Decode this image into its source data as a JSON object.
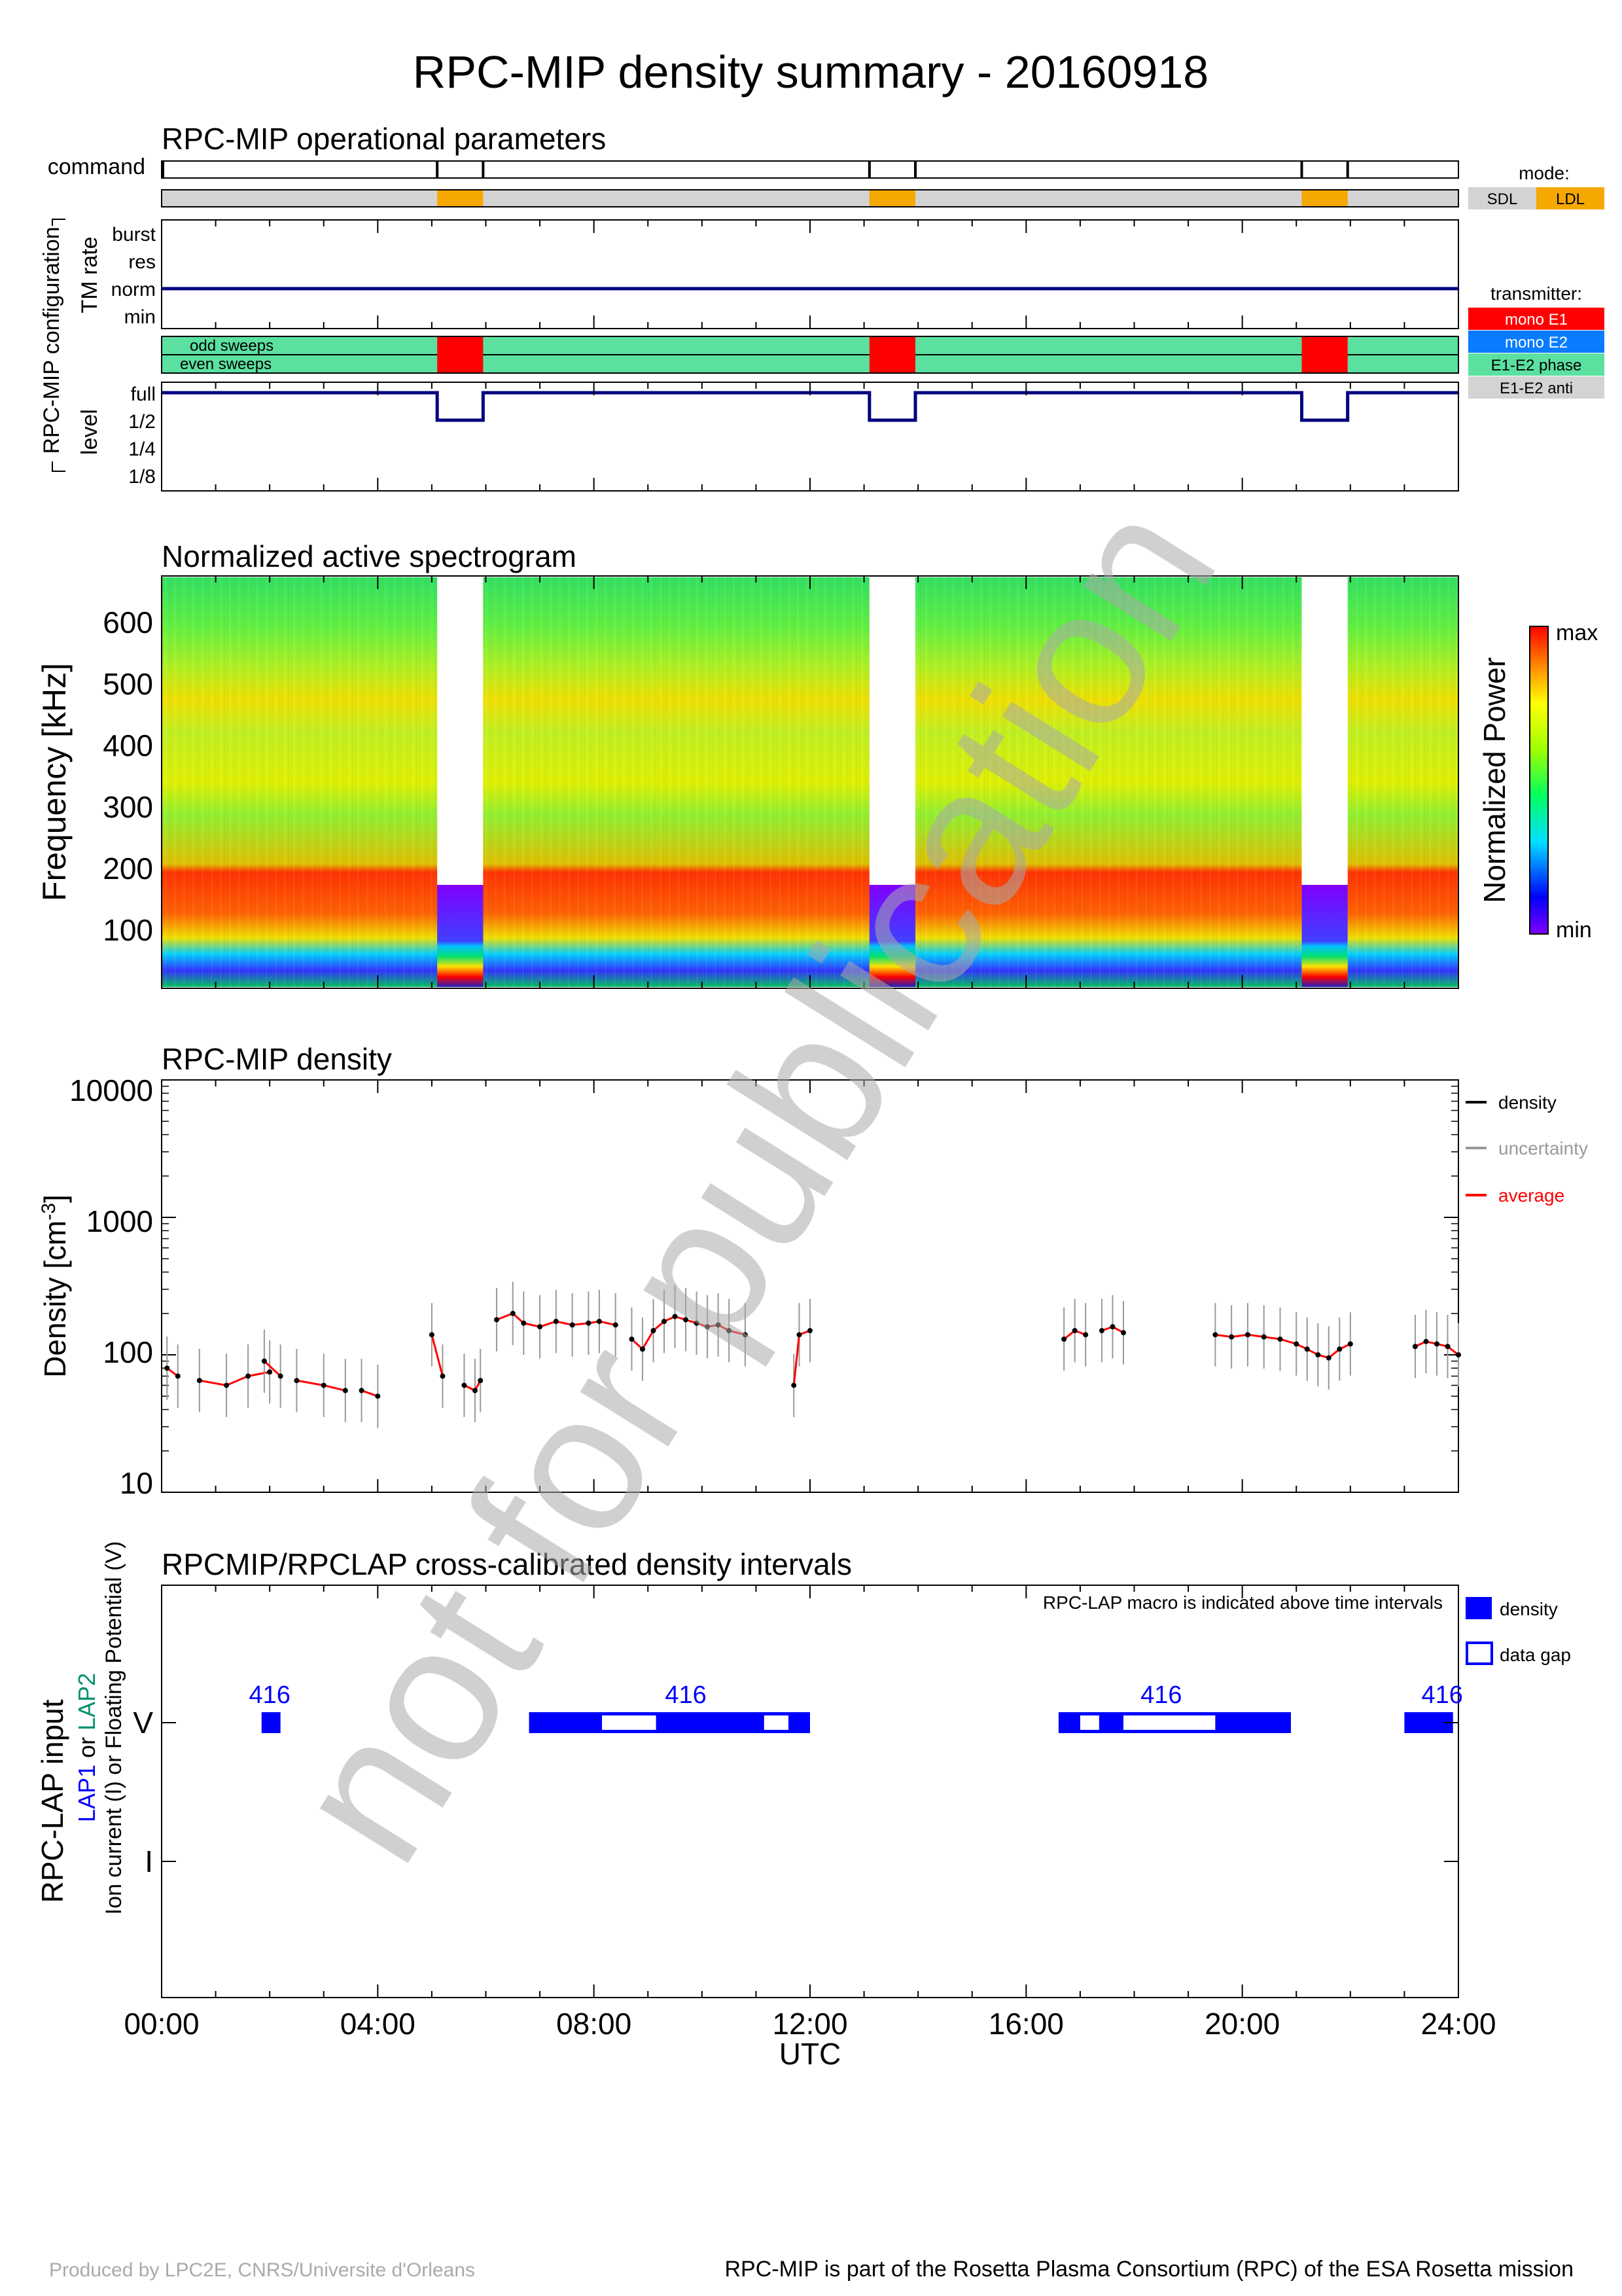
{
  "title": "RPC-MIP density summary - 20160918",
  "watermark": "not for publication",
  "footer": {
    "left": "Produced by LPC2E, CNRS/Universite d'Orleans",
    "right": "RPC-MIP is part of the Rosetta Plasma Consortium (RPC) of the ESA Rosetta mission"
  },
  "colors": {
    "ldl": "#f5a800",
    "sdl": "#d3d3d3",
    "mono_e1": "#ff0000",
    "mono_e2": "#0a7cff",
    "phase": "#5ce0a0",
    "anti": "#d3d3d3",
    "navy": "#000080",
    "lap_blue": "#0000ff",
    "lap2_green": "#009070"
  },
  "ops": {
    "title": "RPC-MIP operational parameters",
    "command_label": "command",
    "config_label": "RPC-MIP configuration",
    "tm_rate_label": "TM rate",
    "tm_levels": [
      "burst",
      "res",
      "norm",
      "min"
    ],
    "odd_label": "odd sweeps",
    "even_label": "even sweeps",
    "level_label": "level",
    "levels": [
      "full",
      "1/2",
      "1/4",
      "1/8"
    ],
    "command_times_h": [
      5.1,
      5.95,
      13.1,
      13.95,
      21.1,
      21.95
    ],
    "ldl_intervals_h": [
      [
        5.1,
        5.95
      ],
      [
        13.1,
        13.95
      ],
      [
        21.1,
        21.95
      ]
    ],
    "mono_e1_intervals_h": [
      [
        5.1,
        5.95
      ],
      [
        13.1,
        13.95
      ],
      [
        21.1,
        21.95
      ]
    ],
    "half_level_intervals_h": [
      [
        5.1,
        5.95
      ],
      [
        13.1,
        13.95
      ],
      [
        21.1,
        21.95
      ]
    ]
  },
  "mode_legend": {
    "title": "mode:",
    "sdl": "SDL",
    "ldl": "LDL"
  },
  "transmitter_legend": {
    "title": "transmitter:",
    "items": [
      "mono E1",
      "mono E2",
      "E1-E2 phase",
      "E1-E2 anti"
    ]
  },
  "spectrogram": {
    "title": "Normalized active spectrogram",
    "ylabel": "Frequency [kHz]",
    "yticks": [
      "100",
      "200",
      "300",
      "400",
      "500",
      "600"
    ],
    "colorbar_label": "Normalized Power",
    "colorbar_max": "max",
    "colorbar_min": "min"
  },
  "chart_data": [
    {
      "type": "scatter",
      "title": "RPC-MIP density",
      "ylabel": "Density [cm-3]",
      "yscale": "log",
      "ylim": [
        10,
        10000
      ],
      "xlim_h": [
        0,
        24
      ],
      "yticks": [
        "10",
        "100",
        "1000",
        "10000"
      ],
      "legend": [
        "density",
        "uncertainty",
        "average"
      ],
      "segments": [
        {
          "x": [
            0.1,
            0.3
          ],
          "y": [
            80,
            70
          ]
        },
        {
          "x": [
            0.7,
            1.2,
            1.6,
            2.0
          ],
          "y": [
            65,
            60,
            70,
            75
          ]
        },
        {
          "x": [
            1.9,
            2.2
          ],
          "y": [
            90,
            70
          ]
        },
        {
          "x": [
            2.5,
            3.0,
            3.4
          ],
          "y": [
            65,
            60,
            55
          ]
        },
        {
          "x": [
            3.7,
            4.0
          ],
          "y": [
            55,
            50
          ]
        },
        {
          "x": [
            5.0,
            5.2
          ],
          "y": [
            140,
            70
          ]
        },
        {
          "x": [
            5.6,
            5.8,
            5.9
          ],
          "y": [
            60,
            55,
            65
          ]
        },
        {
          "x": [
            6.2,
            6.5,
            6.7,
            7.0,
            7.3,
            7.6,
            7.9,
            8.1,
            8.4
          ],
          "y": [
            180,
            200,
            170,
            160,
            175,
            165,
            170,
            175,
            165
          ]
        },
        {
          "x": [
            8.7,
            8.9,
            9.1,
            9.3,
            9.5,
            9.7,
            9.9,
            10.1,
            10.3,
            10.5,
            10.8
          ],
          "y": [
            130,
            110,
            150,
            175,
            190,
            180,
            170,
            160,
            165,
            150,
            140
          ]
        },
        {
          "x": [
            11.7,
            11.8,
            12.0
          ],
          "y": [
            60,
            140,
            150
          ]
        },
        {
          "x": [
            16.7,
            16.9,
            17.1
          ],
          "y": [
            130,
            150,
            140
          ]
        },
        {
          "x": [
            17.4,
            17.6,
            17.8
          ],
          "y": [
            150,
            160,
            145
          ]
        },
        {
          "x": [
            19.5,
            19.8,
            20.1,
            20.4,
            20.7,
            21.0,
            21.2,
            21.4,
            21.6,
            21.8,
            22.0
          ],
          "y": [
            140,
            135,
            140,
            135,
            130,
            120,
            110,
            100,
            95,
            110,
            120
          ]
        },
        {
          "x": [
            23.2,
            23.4,
            23.6,
            23.8,
            24.0
          ],
          "y": [
            115,
            125,
            120,
            115,
            100
          ]
        }
      ]
    },
    {
      "type": "bar",
      "title": "RPCMIP/RPCLAP cross-calibrated density intervals",
      "ylabel": "RPC-LAP input",
      "ylabel2_parts": [
        "LAP1",
        " or ",
        "LAP2"
      ],
      "ylabel3": "Ion current (I) or Floating Potential (V)",
      "ycategories": [
        "V",
        "I"
      ],
      "note": "RPC-LAP macro is indicated above time intervals",
      "legend": [
        "density",
        "data gap"
      ],
      "macro_labels": [
        {
          "x": 2.0,
          "text": "416"
        },
        {
          "x": 9.7,
          "text": "416"
        },
        {
          "x": 18.5,
          "text": "416"
        },
        {
          "x": 23.7,
          "text": "416"
        }
      ],
      "density_intervals_h": [
        [
          1.85,
          2.2
        ],
        [
          6.8,
          12.0
        ],
        [
          16.6,
          20.9
        ],
        [
          23.0,
          23.9
        ]
      ],
      "gap_intervals_h": [
        [
          8.15,
          9.15
        ],
        [
          11.15,
          11.6
        ],
        [
          17.0,
          17.35
        ],
        [
          17.8,
          19.5
        ]
      ],
      "xlabel": "UTC",
      "xticks": [
        "00:00",
        "04:00",
        "08:00",
        "12:00",
        "16:00",
        "20:00",
        "24:00"
      ]
    }
  ]
}
